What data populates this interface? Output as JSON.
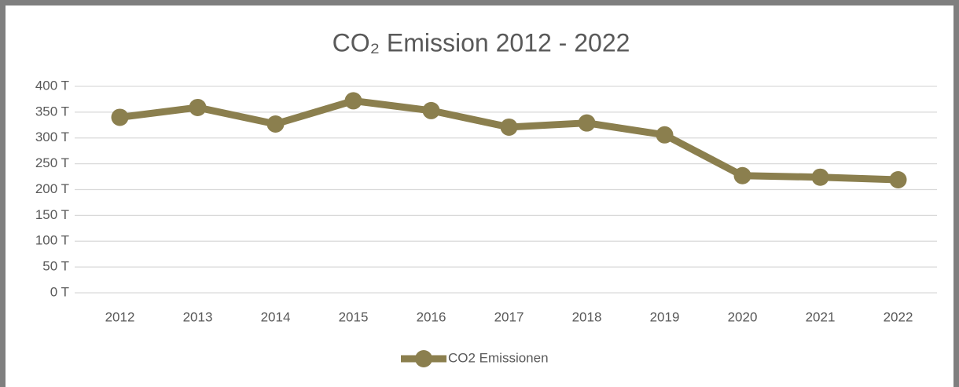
{
  "chart_data": {
    "type": "line",
    "title": "CO₂ Emission 2012 - 2022",
    "categories": [
      "2012",
      "2013",
      "2014",
      "2015",
      "2016",
      "2017",
      "2018",
      "2019",
      "2020",
      "2021",
      "2022"
    ],
    "series": [
      {
        "name": "CO2 Emissionen",
        "color": "#8b7f4e",
        "values": [
          340,
          359,
          327,
          372,
          353,
          321,
          329,
          306,
          227,
          224,
          219
        ]
      }
    ],
    "ylim": [
      0,
      400
    ],
    "yticks": [
      {
        "value": 0,
        "label": "0 T"
      },
      {
        "value": 50,
        "label": "50 T"
      },
      {
        "value": 100,
        "label": "100 T"
      },
      {
        "value": 150,
        "label": "150 T"
      },
      {
        "value": 200,
        "label": "200 T"
      },
      {
        "value": 250,
        "label": "250 T"
      },
      {
        "value": 300,
        "label": "300 T"
      },
      {
        "value": 350,
        "label": "350 T"
      },
      {
        "value": 400,
        "label": "400 T"
      }
    ],
    "grid": true,
    "legend": "bottom"
  }
}
